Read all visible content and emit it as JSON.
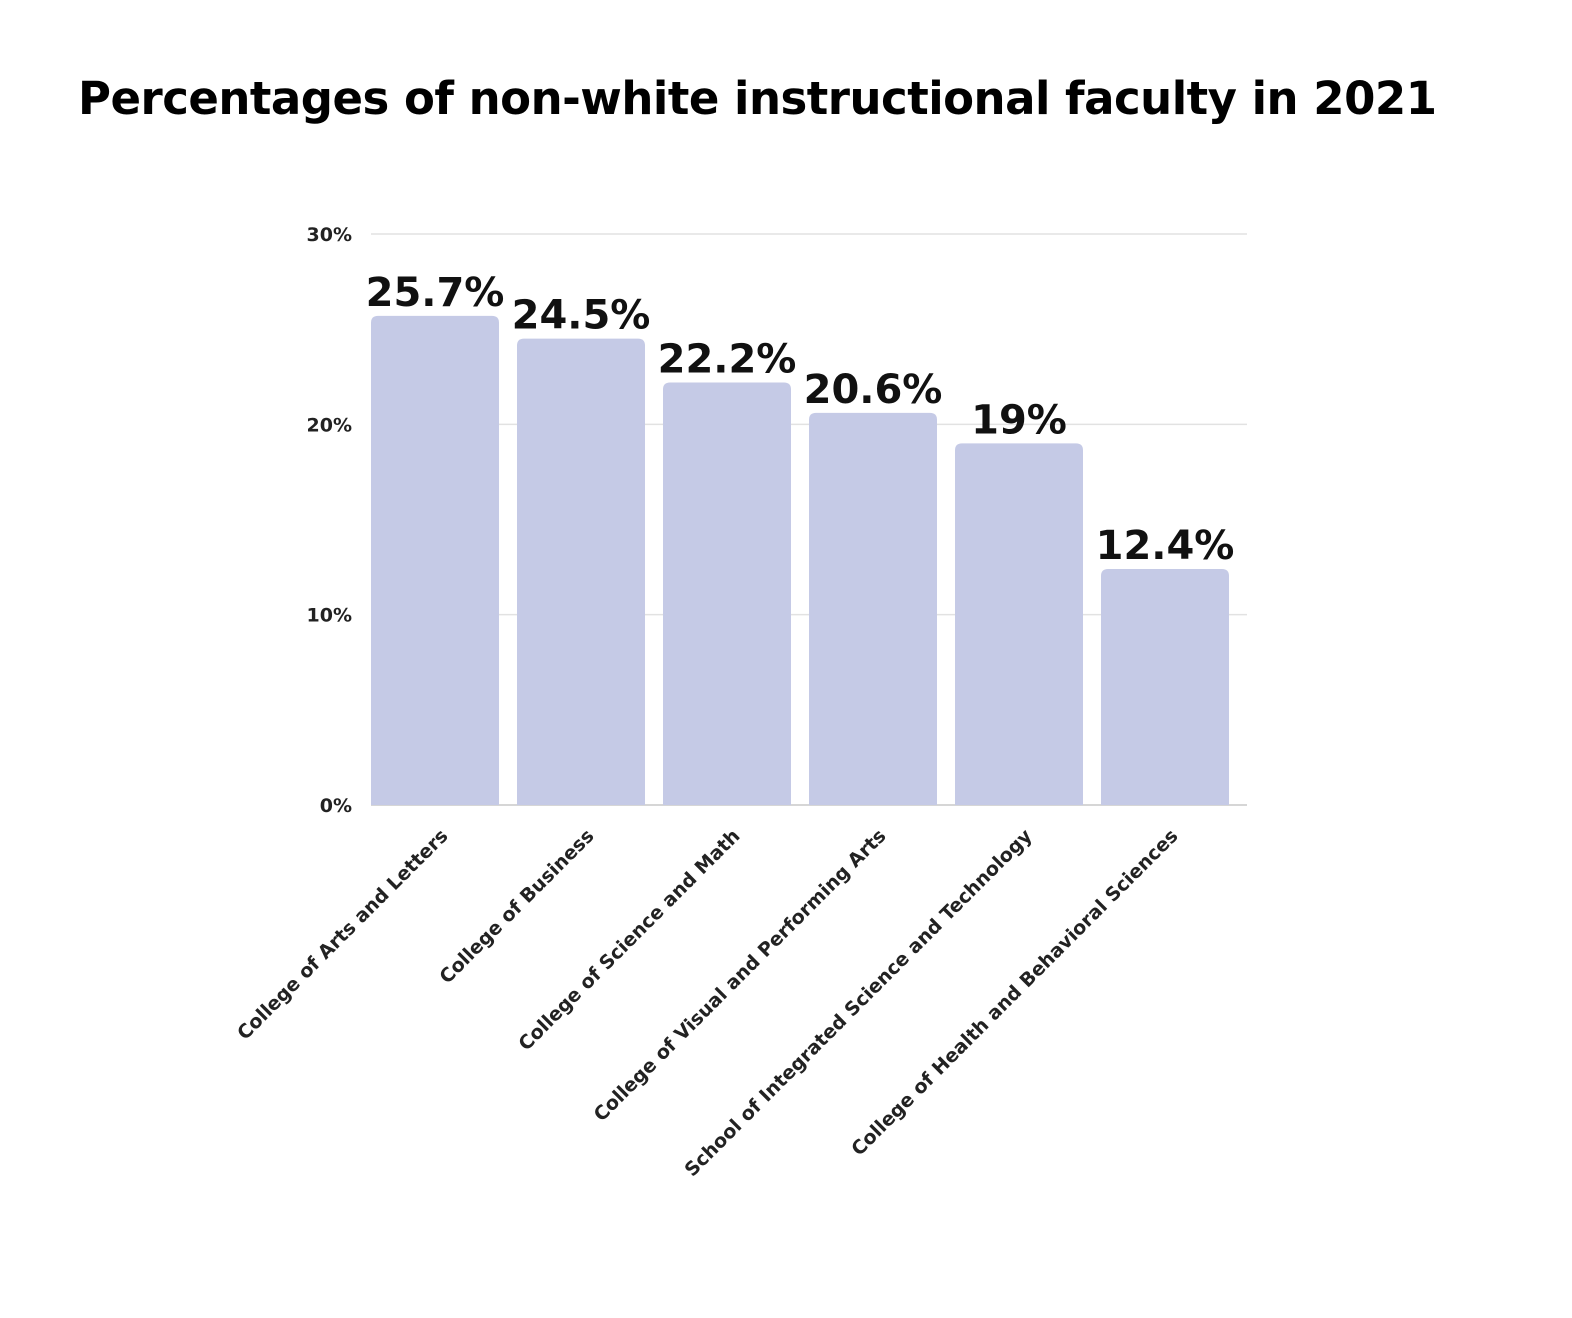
{
  "chart_data": {
    "type": "bar",
    "title": "Percentages of non-white instructional faculty in 2021",
    "categories": [
      "College of Arts and Letters",
      "College of Business",
      "College of Science and Math",
      "College of Visual and Performing Arts",
      "School of Integrated Science and Technology",
      "College of Health and Behavioral Sciences"
    ],
    "values": [
      25.7,
      24.5,
      22.2,
      20.6,
      19,
      12.4
    ],
    "value_labels": [
      "25.7%",
      "24.5%",
      "22.2%",
      "20.6%",
      "19%",
      "12.4%"
    ],
    "y_ticks": [
      0,
      10,
      20,
      30
    ],
    "y_tick_labels": [
      "0%",
      "10%",
      "20%",
      "30%"
    ],
    "ylim": [
      0,
      30
    ],
    "grid": true,
    "legend": "none",
    "bar_color": "#c5cae6",
    "grid_color": "#e2e2e2",
    "xlabel": "",
    "ylabel": ""
  }
}
